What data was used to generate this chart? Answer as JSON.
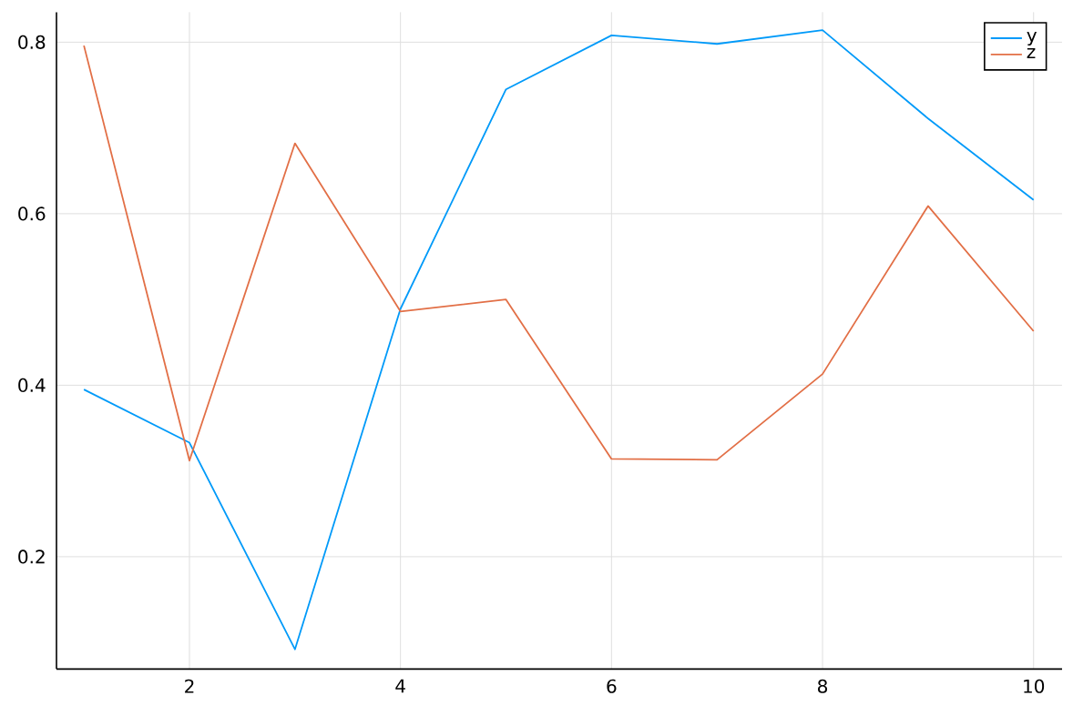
{
  "chart_data": {
    "type": "line",
    "x": [
      1,
      2,
      3,
      4,
      5,
      6,
      7,
      8,
      9,
      10
    ],
    "series": [
      {
        "name": "y",
        "color": "#009af9",
        "values": [
          0.395,
          0.333,
          0.092,
          0.489,
          0.745,
          0.808,
          0.798,
          0.814,
          0.711,
          0.616
        ]
      },
      {
        "name": "z",
        "color": "#e26f46",
        "values": [
          0.796,
          0.312,
          0.682,
          0.486,
          0.5,
          0.314,
          0.313,
          0.413,
          0.609,
          0.463
        ]
      }
    ],
    "xlim": [
      0.74,
      10.27
    ],
    "ylim": [
      0.069,
      0.835
    ],
    "xticks": [
      2,
      4,
      6,
      8,
      10
    ],
    "yticks": [
      0.2,
      0.4,
      0.6,
      0.8
    ],
    "grid": true,
    "legend": "top right",
    "marker": "none",
    "line_style": "solid"
  }
}
